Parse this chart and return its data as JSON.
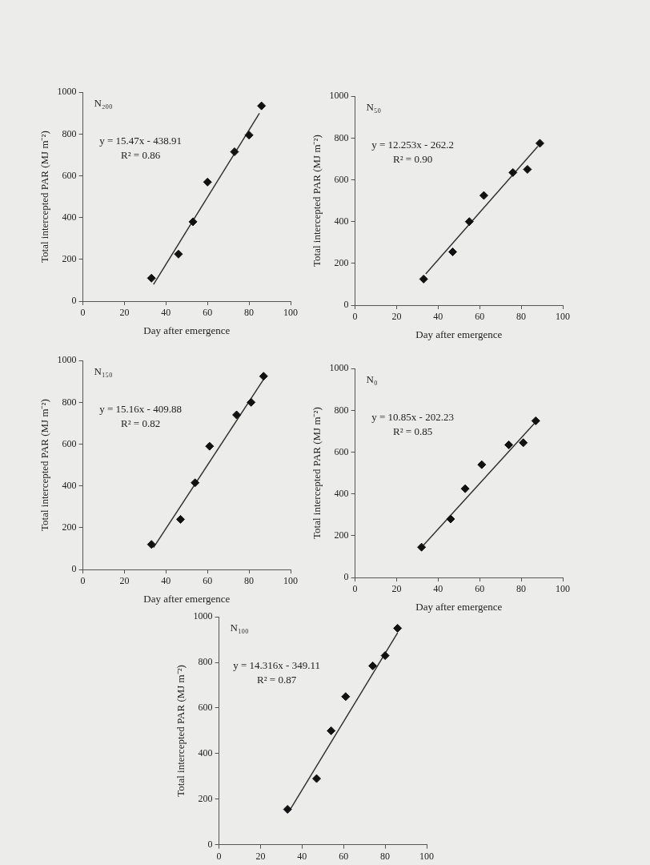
{
  "chart_data": [
    {
      "type": "scatter",
      "title": "N₂₀₀",
      "xlabel": "Day after emergence",
      "ylabel": "Total intercepted PAR (MJ m⁻²)",
      "xlim": [
        0,
        100
      ],
      "xticks": [
        0,
        20,
        40,
        60,
        80,
        100
      ],
      "ylim": [
        0,
        1000
      ],
      "yticks": [
        0,
        200,
        400,
        600,
        800,
        1000
      ],
      "grid": false,
      "legend": false,
      "annotations": [
        "y = 15.47x - 438.91",
        "R² = 0.86"
      ],
      "series": [
        {
          "color": "#111111",
          "marker": "diamond",
          "x": [
            33,
            46,
            53,
            60,
            73,
            80,
            86
          ],
          "values": [
            110,
            225,
            380,
            570,
            715,
            795,
            935
          ]
        },
        {
          "type": "line",
          "marker": "none",
          "color": "#333333",
          "x": [
            34,
            85
          ],
          "values": [
            80,
            900
          ]
        }
      ]
    },
    {
      "type": "scatter",
      "title": "N₅₀",
      "xlabel": "Day after emergence",
      "ylabel": "Total intercepted PAR (MJ m⁻²)",
      "xlim": [
        0,
        100
      ],
      "xticks": [
        0,
        20,
        40,
        60,
        80,
        100
      ],
      "ylim": [
        0,
        1000
      ],
      "yticks": [
        0,
        200,
        400,
        600,
        800,
        1000
      ],
      "grid": false,
      "legend": false,
      "annotations": [
        "y = 12.253x - 262.2",
        "R² = 0.90"
      ],
      "series": [
        {
          "color": "#111111",
          "marker": "diamond",
          "x": [
            33,
            47,
            55,
            62,
            76,
            83,
            89
          ],
          "values": [
            125,
            255,
            400,
            525,
            635,
            650,
            775
          ]
        },
        {
          "type": "line",
          "marker": "none",
          "color": "#333333",
          "x": [
            34,
            88
          ],
          "values": [
            150,
            760
          ]
        }
      ]
    },
    {
      "type": "scatter",
      "title": "N₁₅₀",
      "xlabel": "Day after emergence",
      "ylabel": "Total intercepted PAR (MJ m⁻²)",
      "xlim": [
        0,
        100
      ],
      "xticks": [
        0,
        20,
        40,
        60,
        80,
        100
      ],
      "ylim": [
        0,
        1000
      ],
      "yticks": [
        0,
        200,
        400,
        600,
        800,
        1000
      ],
      "grid": false,
      "legend": false,
      "annotations": [
        "y = 15.16x - 409.88",
        "R² = 0.82"
      ],
      "series": [
        {
          "color": "#111111",
          "marker": "diamond",
          "x": [
            33,
            47,
            54,
            61,
            74,
            81,
            87
          ],
          "values": [
            120,
            240,
            415,
            590,
            740,
            800,
            925
          ]
        },
        {
          "type": "line",
          "marker": "none",
          "color": "#333333",
          "x": [
            34,
            87
          ],
          "values": [
            105,
            910
          ]
        }
      ]
    },
    {
      "type": "scatter",
      "title": "N₀",
      "xlabel": "Day after emergence",
      "ylabel": "Total intercepted PAR (MJ m⁻²)",
      "xlim": [
        0,
        100
      ],
      "xticks": [
        0,
        20,
        40,
        60,
        80,
        100
      ],
      "ylim": [
        0,
        1000
      ],
      "yticks": [
        0,
        200,
        400,
        600,
        800,
        1000
      ],
      "grid": false,
      "legend": false,
      "annotations": [
        "y = 10.85x - 202.23",
        "R² = 0.85"
      ],
      "series": [
        {
          "color": "#111111",
          "marker": "diamond",
          "x": [
            32,
            46,
            53,
            61,
            74,
            81,
            87
          ],
          "values": [
            145,
            280,
            425,
            540,
            635,
            645,
            750
          ]
        },
        {
          "type": "line",
          "marker": "none",
          "color": "#333333",
          "x": [
            33,
            87
          ],
          "values": [
            155,
            745
          ]
        }
      ]
    },
    {
      "type": "scatter",
      "title": "N₁₀₀",
      "ylabel": "Total intercepted PAR (MJ m⁻²)",
      "xlim": [
        0,
        100
      ],
      "xticks": [
        0,
        20,
        40,
        60,
        80,
        100
      ],
      "ylim": [
        0,
        1000
      ],
      "yticks": [
        0,
        200,
        400,
        600,
        800,
        1000
      ],
      "grid": false,
      "legend": false,
      "annotations": [
        "y = 14.316x - 349.11",
        "R² = 0.87"
      ],
      "series": [
        {
          "color": "#111111",
          "marker": "diamond",
          "x": [
            33,
            47,
            54,
            61,
            74,
            80,
            86
          ],
          "values": [
            155,
            290,
            500,
            650,
            785,
            830,
            950
          ]
        },
        {
          "type": "line",
          "marker": "none",
          "color": "#333333",
          "x": [
            34,
            86
          ],
          "values": [
            150,
            930
          ]
        }
      ]
    }
  ]
}
